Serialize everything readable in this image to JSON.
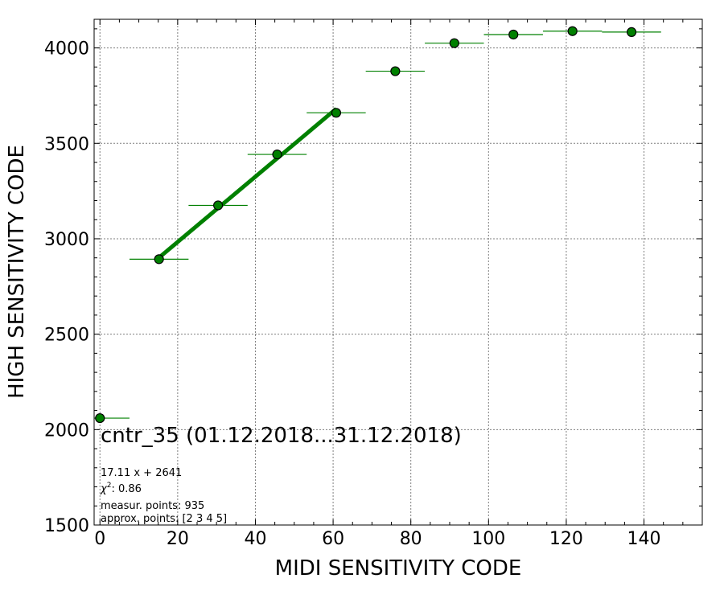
{
  "chart_data": {
    "type": "scatter",
    "title": "cntr_35 (01.12.2018...31.12.2018)",
    "xlabel": "MIDI SENSITIVITY CODE",
    "ylabel": "HIGH SENSITIVITY CODE",
    "xlim": [
      -1.5,
      155
    ],
    "ylim": [
      1500,
      4150
    ],
    "x_ticks": [
      0,
      20,
      40,
      60,
      80,
      100,
      120,
      140
    ],
    "y_ticks": [
      1500,
      2000,
      2500,
      3000,
      3500,
      4000
    ],
    "grid": true,
    "marker_color": "#008000",
    "marker_edge_color": "#000000",
    "fit_color": "#008000",
    "points": [
      {
        "x": 0,
        "y": 2060,
        "xerr": 7.6
      },
      {
        "x": 15.2,
        "y": 2893,
        "xerr": 7.6
      },
      {
        "x": 30.4,
        "y": 3175,
        "xerr": 7.6
      },
      {
        "x": 45.6,
        "y": 3442,
        "xerr": 7.6
      },
      {
        "x": 60.8,
        "y": 3660,
        "xerr": 7.6
      },
      {
        "x": 76,
        "y": 3878,
        "xerr": 7.6
      },
      {
        "x": 91.2,
        "y": 4025,
        "xerr": 7.6
      },
      {
        "x": 106.4,
        "y": 4070,
        "xerr": 7.6
      },
      {
        "x": 121.6,
        "y": 4088,
        "xerr": 7.6
      },
      {
        "x": 136.8,
        "y": 4083,
        "xerr": 7.6
      }
    ],
    "fit": {
      "slope": 17.11,
      "intercept": 2641,
      "x_range": [
        15.2,
        60.8
      ]
    },
    "annotations": {
      "equation": "17.11 x + 2641",
      "chi2_value": ": 0.86",
      "measur_points": "measur. points: 935",
      "approx_points": "approx. points: [2 3 4 5]"
    }
  }
}
